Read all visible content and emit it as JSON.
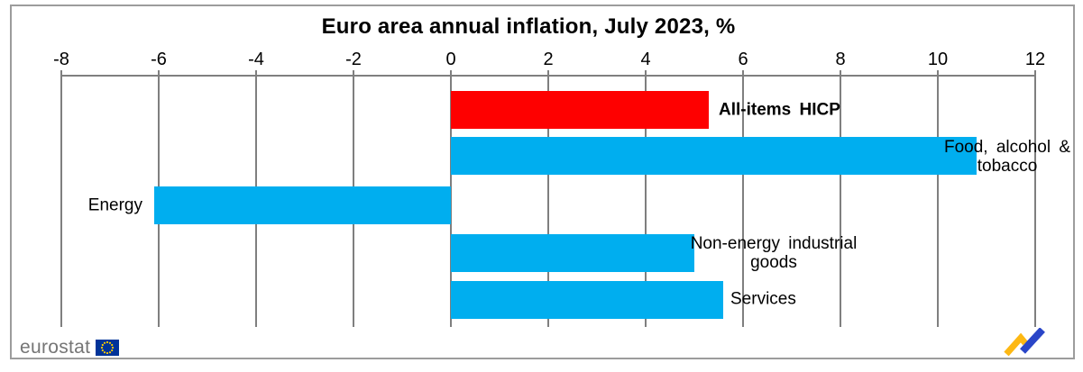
{
  "title": "Euro area annual inflation, July 2023, %",
  "chart_data": {
    "type": "bar",
    "orientation": "horizontal",
    "title": "Euro area annual inflation, July 2023, %",
    "unit": "%",
    "categories": [
      "All-items HICP",
      "Food, alcohol & tobacco",
      "Energy",
      "Non-energy industrial goods",
      "Services"
    ],
    "values": [
      5.3,
      10.8,
      -6.1,
      5.0,
      5.6
    ],
    "bar_colors": [
      "#FE0000",
      "#00AEEF",
      "#00AEEF",
      "#00AEEF",
      "#00AEEF"
    ],
    "highlighted_category": "All-items HICP",
    "xlim": [
      -8,
      12
    ],
    "x_ticks": [
      -8,
      -6,
      -4,
      -2,
      0,
      2,
      4,
      6,
      8,
      10,
      12
    ],
    "grid": true,
    "legend": "none",
    "colors": {
      "highlight": "#FE0000",
      "component_bar": "#00AEEF",
      "gridline": "#7F7F7F",
      "frame": "#9C9C9C",
      "eu_flag_blue": "#003399",
      "eu_flag_star": "#FFCC00",
      "logo_yellow": "#FDB813",
      "logo_blue": "#2A46C8"
    }
  },
  "footer": {
    "brand": "eurostat"
  },
  "icons": {
    "eu_flag": "eu-flag-icon",
    "trend": "trend-zigzag-icon"
  }
}
